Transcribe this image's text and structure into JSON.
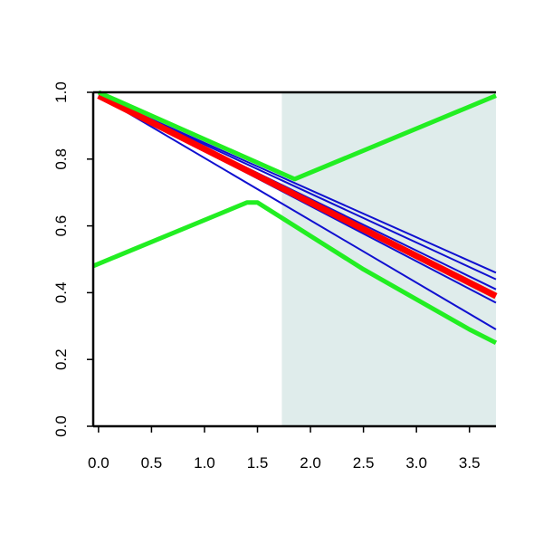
{
  "chart_data": {
    "type": "line",
    "title": "",
    "xlabel": "",
    "ylabel": "",
    "xlim": [
      -0.05,
      3.75
    ],
    "ylim": [
      0.0,
      1.0
    ],
    "grid": false,
    "legend": "none",
    "x_ticks": [
      {
        "value": 0.0,
        "label": "0.0"
      },
      {
        "value": 0.5,
        "label": "0.5"
      },
      {
        "value": 1.0,
        "label": "1.0"
      },
      {
        "value": 1.5,
        "label": "1.5"
      },
      {
        "value": 2.0,
        "label": "2.0"
      },
      {
        "value": 2.5,
        "label": "2.5"
      },
      {
        "value": 3.0,
        "label": "3.0"
      },
      {
        "value": 3.5,
        "label": "3.5"
      }
    ],
    "y_ticks": [
      {
        "value": 0.0,
        "label": "0.0"
      },
      {
        "value": 0.2,
        "label": "0.2"
      },
      {
        "value": 0.4,
        "label": "0.4"
      },
      {
        "value": 0.6,
        "label": "0.6"
      },
      {
        "value": 0.8,
        "label": "0.8"
      },
      {
        "value": 1.0,
        "label": "1.0"
      }
    ],
    "shaded_region": {
      "x_from": 1.73,
      "x_to": 3.75,
      "color": "#dfeceb"
    },
    "series": [
      {
        "color": "#1010d0",
        "width": 2,
        "points": [
          [
            0,
            0.99
          ],
          [
            3.75,
            0.46
          ]
        ]
      },
      {
        "color": "#1010d0",
        "width": 2,
        "points": [
          [
            0,
            0.99
          ],
          [
            3.75,
            0.44
          ]
        ]
      },
      {
        "color": "#1010d0",
        "width": 2,
        "points": [
          [
            0,
            0.99
          ],
          [
            3.75,
            0.41
          ]
        ]
      },
      {
        "color": "#1010d0",
        "width": 2,
        "points": [
          [
            0,
            0.99
          ],
          [
            3.75,
            0.37
          ]
        ]
      },
      {
        "color": "#1010d0",
        "width": 2,
        "points": [
          [
            0,
            0.99
          ],
          [
            3.75,
            0.29
          ]
        ]
      },
      {
        "color": "#ff0000",
        "width": 7,
        "points": [
          [
            0,
            0.99
          ],
          [
            3.75,
            0.39
          ]
        ]
      },
      {
        "color": "#22ee22",
        "width": 5,
        "points": [
          [
            -0.05,
            0.48
          ],
          [
            1.4,
            0.67
          ],
          [
            1.5,
            0.67
          ],
          [
            2.0,
            0.57
          ],
          [
            2.5,
            0.47
          ],
          [
            3.0,
            0.38
          ],
          [
            3.5,
            0.29
          ],
          [
            3.75,
            0.25
          ]
        ]
      },
      {
        "color": "#22ee22",
        "width": 5,
        "points": [
          [
            0,
            1.0
          ],
          [
            1.85,
            0.74
          ],
          [
            3.75,
            0.99
          ]
        ]
      }
    ]
  }
}
